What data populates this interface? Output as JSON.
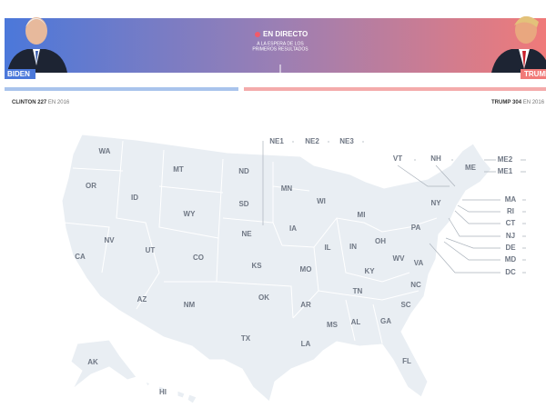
{
  "header": {
    "left_name": "BIDEN",
    "right_name": "TRUMP",
    "live": "EN DIRECTO",
    "status_1": "A LA ESPERA DE LOS",
    "status_2": "PRIMEROS RESULTADOS"
  },
  "left_ref": {
    "name": "CLINTON",
    "votes": "227",
    "suffix": "EN 2016"
  },
  "right_ref": {
    "name": "TRUMP",
    "votes": "304",
    "suffix": "EN 2016"
  },
  "map": {
    "states": [
      "WA",
      "OR",
      "CA",
      "ID",
      "NV",
      "UT",
      "AZ",
      "MT",
      "WY",
      "CO",
      "NM",
      "ND",
      "SD",
      "NE",
      "KS",
      "OK",
      "TX",
      "MN",
      "IA",
      "MO",
      "AR",
      "LA",
      "WI",
      "IL",
      "MI",
      "IN",
      "OH",
      "KY",
      "TN",
      "MS",
      "AL",
      "GA",
      "FL",
      "SC",
      "NC",
      "VA",
      "WV",
      "PA",
      "NY",
      "ME",
      "AK",
      "HI"
    ],
    "callouts": [
      "NE1",
      "NE2",
      "NE3",
      "VT",
      "NH",
      "ME2",
      "ME1",
      "MA",
      "RI",
      "CT",
      "NJ",
      "DE",
      "MD",
      "DC"
    ]
  }
}
